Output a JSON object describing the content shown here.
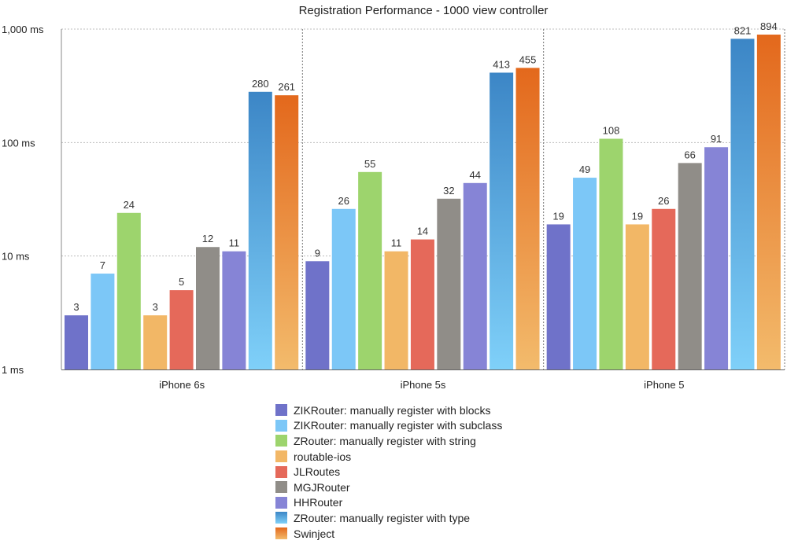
{
  "chart_data": {
    "type": "bar",
    "title": "Registration Performance - 1000 view controller",
    "xlabel": "",
    "ylabel": "",
    "yscale": "log",
    "ylim": [
      1,
      1000
    ],
    "y_ticks": [
      {
        "value": 1,
        "label": "1 ms"
      },
      {
        "value": 10,
        "label": "10 ms"
      },
      {
        "value": 100,
        "label": "100 ms"
      },
      {
        "value": 1000,
        "label": "1,000 ms"
      }
    ],
    "grid": true,
    "legend_position": "bottom",
    "categories": [
      "iPhone 6s",
      "iPhone 5s",
      "iPhone 5"
    ],
    "series": [
      {
        "name": "ZIKRouter: manually register with blocks",
        "values": [
          3,
          9,
          19
        ],
        "color": "#6f72c9"
      },
      {
        "name": "ZIKRouter: manually register with subclass",
        "values": [
          7,
          26,
          49
        ],
        "color": "#7cc7f7"
      },
      {
        "name": "ZRouter: manually register with string",
        "values": [
          24,
          55,
          108
        ],
        "color": "#9dd46d"
      },
      {
        "name": "routable-ios",
        "values": [
          3,
          11,
          19
        ],
        "color": "#f2b766"
      },
      {
        "name": "JLRoutes",
        "values": [
          5,
          14,
          26
        ],
        "color": "#e5695a"
      },
      {
        "name": "MGJRouter",
        "values": [
          12,
          32,
          66
        ],
        "color": "#908d88"
      },
      {
        "name": "HHRouter",
        "values": [
          11,
          44,
          91
        ],
        "color": "#8684d6"
      },
      {
        "name": "ZRouter: manually register with type",
        "values": [
          280,
          413,
          821
        ],
        "color": "#3c86c6",
        "gradient_to": "#7fd0f9"
      },
      {
        "name": "Swinject",
        "values": [
          261,
          455,
          894
        ],
        "color": "#e3681c",
        "gradient_to": "#f3bb6c"
      }
    ]
  }
}
